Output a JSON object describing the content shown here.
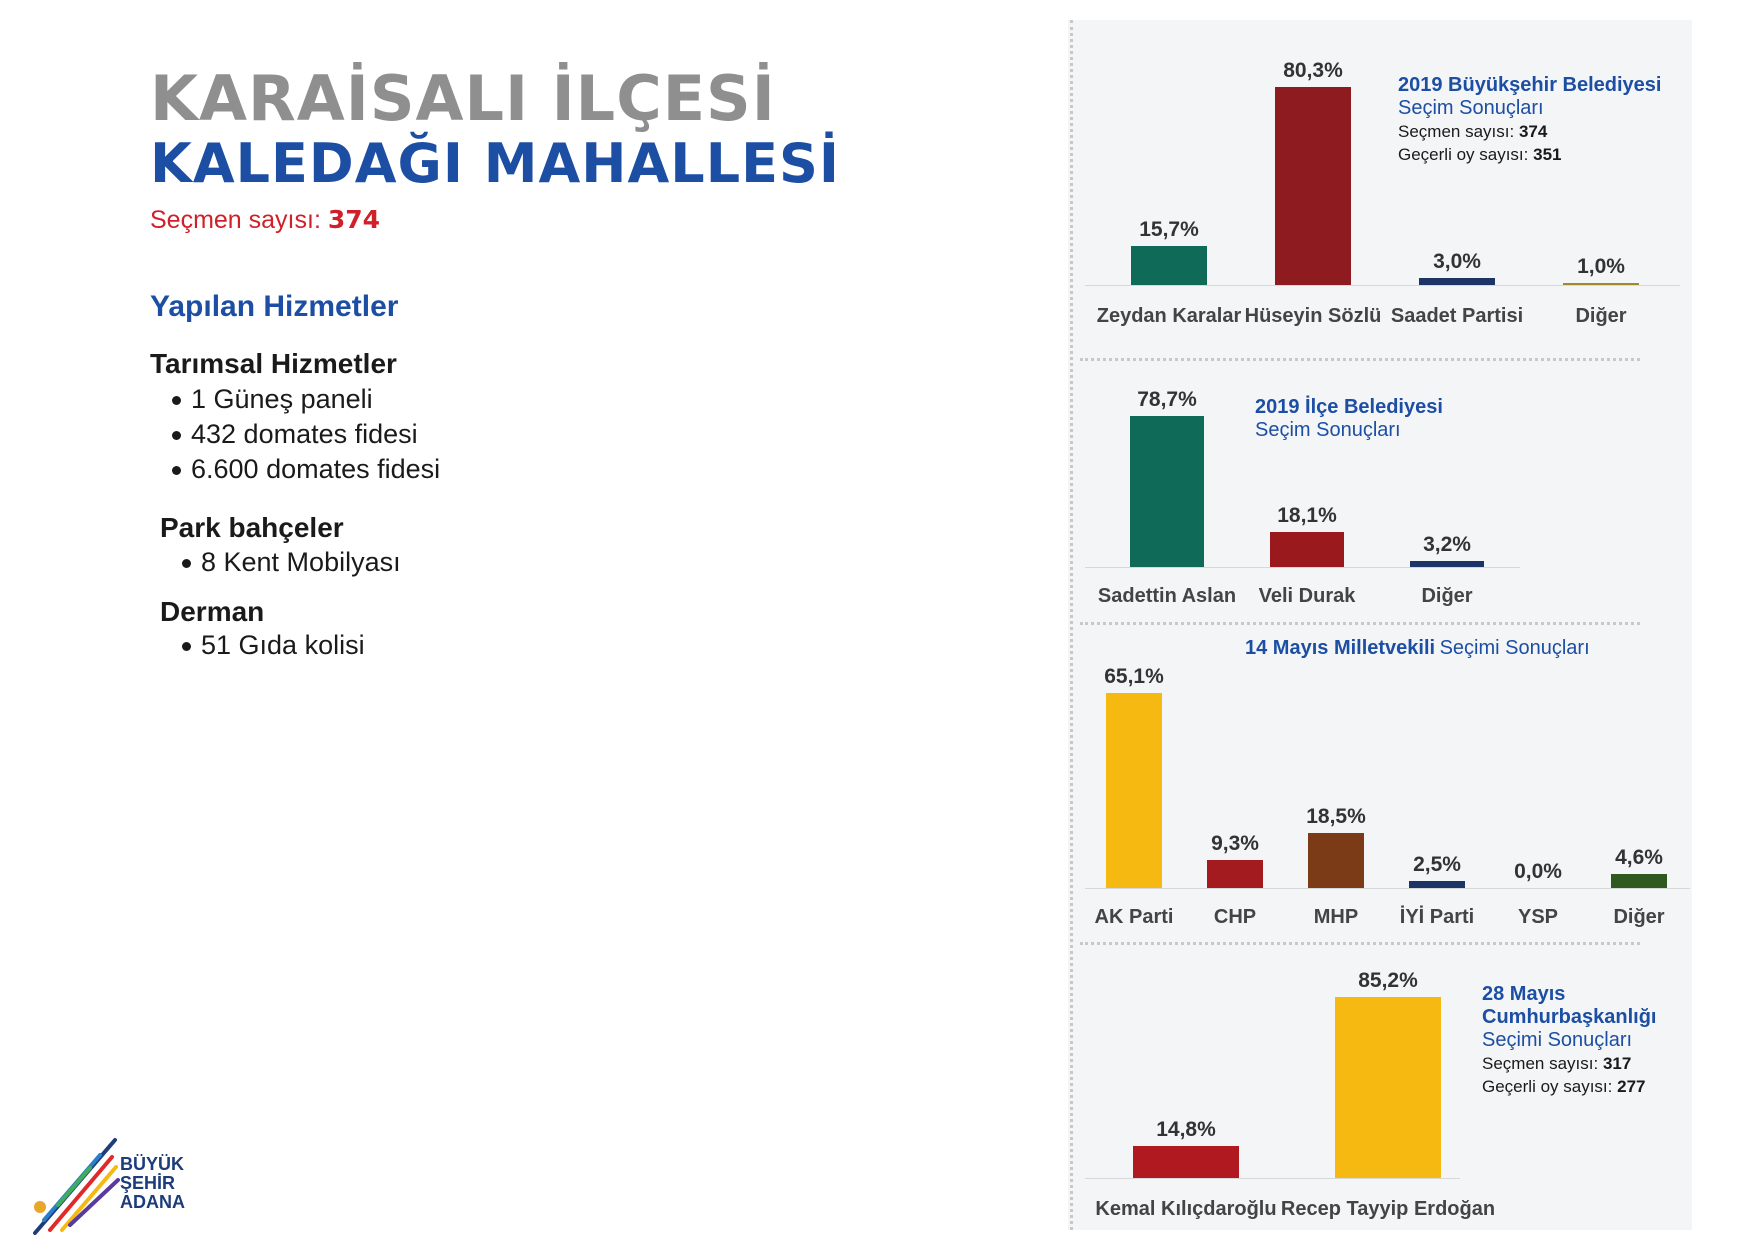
{
  "header": {
    "title_line1": "KARAİSALI İLÇESİ",
    "title_line2": "KALEDAĞI MAHALLESİ",
    "voters_label": "Seçmen sayısı:",
    "voters_value": "374"
  },
  "services": {
    "title": "Yapılan Hizmetler",
    "sections": [
      {
        "heading": "Tarımsal Hizmetler",
        "items": [
          "1 Güneş paneli",
          "432 domates fidesi",
          "6.600 domates fidesi"
        ]
      },
      {
        "heading": "Park bahçeler",
        "items": [
          "8 Kent Mobilyası"
        ]
      },
      {
        "heading": "Derman",
        "items": [
          "51 Gıda kolisi"
        ]
      }
    ]
  },
  "logo": {
    "line1": "BÜYÜK",
    "line2": "ŞEHİR",
    "line3": "ADANA"
  },
  "chart_data": [
    {
      "type": "bar",
      "title": "2019 Büyükşehir Belediyesi",
      "subtitle": "Seçim Sonuçları",
      "stats": [
        {
          "label": "Seçmen sayısı:",
          "value": "374"
        },
        {
          "label": "Geçerli oy sayısı:",
          "value": "351"
        }
      ],
      "categories": [
        "Zeydan Karalar",
        "Hüseyin Sözlü",
        "Saadet Partisi",
        "Diğer"
      ],
      "values": [
        15.7,
        80.3,
        3.0,
        1.0
      ],
      "value_labels": [
        "15,7%",
        "80,3%",
        "3,0%",
        "1,0%"
      ],
      "colors": [
        "#0f6b57",
        "#8e1b1f",
        "#1d3566",
        "#a08a2a"
      ]
    },
    {
      "type": "bar",
      "title": "2019 İlçe Belediyesi",
      "subtitle": "Seçim Sonuçları",
      "stats": [],
      "categories": [
        "Sadettin Aslan",
        "Veli Durak",
        "Diğer"
      ],
      "values": [
        78.7,
        18.1,
        3.2
      ],
      "value_labels": [
        "78,7%",
        "18,1%",
        "3,2%"
      ],
      "colors": [
        "#0f6b57",
        "#99191d",
        "#1d3566"
      ]
    },
    {
      "type": "bar",
      "title": "14 Mayıs Milletvekili",
      "subtitle": "Seçimi Sonuçları",
      "stats": [],
      "categories": [
        "AK Parti",
        "CHP",
        "MHP",
        "İYİ Parti",
        "YSP",
        "Diğer"
      ],
      "values": [
        65.1,
        9.3,
        18.5,
        2.5,
        0.0,
        4.6
      ],
      "value_labels": [
        "65,1%",
        "9,3%",
        "18,5%",
        "2,5%",
        "0,0%",
        "4,6%"
      ],
      "colors": [
        "#f6b911",
        "#a31b1f",
        "#7b3b16",
        "#1d3566",
        "#7a3a8a",
        "#2f5a1f"
      ]
    },
    {
      "type": "bar",
      "title": "28 Mayıs Cumhurbaşkanlığı",
      "title_lines": [
        "28 Mayıs",
        "Cumhurbaşkanlığı"
      ],
      "subtitle": "Seçimi Sonuçları",
      "stats": [
        {
          "label": "Seçmen sayısı:",
          "value": "317"
        },
        {
          "label": "Geçerli oy sayısı:",
          "value": "277"
        }
      ],
      "categories": [
        "Kemal Kılıçdaroğlu",
        "Recep Tayyip Erdoğan"
      ],
      "values": [
        14.8,
        85.2
      ],
      "value_labels": [
        "14,8%",
        "85,2%"
      ],
      "colors": [
        "#b0191f",
        "#f6b911"
      ]
    }
  ]
}
